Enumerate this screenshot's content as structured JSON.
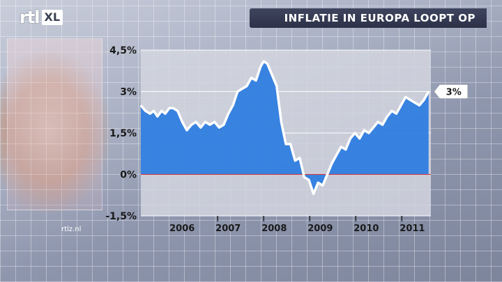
{
  "header": {
    "logo_main": "rtl",
    "logo_badge": "XL",
    "title": "INFLATIE IN EUROPA LOOPT OP"
  },
  "watermark": "rtlz.nl",
  "colors": {
    "area_fill": "#2f7de0",
    "line": "#ffffff",
    "zero_line": "#e03030",
    "plot_bg": "#d4d6df",
    "banner": "#343a52"
  },
  "chart_data": {
    "type": "area",
    "title": "INFLATIE IN EUROPA LOOPT OP",
    "xlabel": "",
    "ylabel": "",
    "ylim": [
      -1.5,
      4.5
    ],
    "xlim": [
      2005.3,
      2011.6
    ],
    "yticks": [
      {
        "value": 4.5,
        "label": "4,5%"
      },
      {
        "value": 3,
        "label": "3%"
      },
      {
        "value": 1.5,
        "label": "1,5%"
      },
      {
        "value": 0,
        "label": "0%"
      },
      {
        "value": -1.5,
        "label": "-1,5%"
      }
    ],
    "xticks": [
      {
        "value": 2006,
        "label": "2006"
      },
      {
        "value": 2007,
        "label": "2007"
      },
      {
        "value": 2008,
        "label": "2008"
      },
      {
        "value": 2009,
        "label": "2009"
      },
      {
        "value": 2010,
        "label": "2010"
      },
      {
        "value": 2011,
        "label": "2011"
      }
    ],
    "grid": "horizontal",
    "last_value_label": "3%",
    "series": [
      {
        "x": [
          2005.3,
          2005.4,
          2005.5,
          2005.58,
          2005.66,
          2005.75,
          2005.83,
          2005.92,
          2006.0,
          2006.1,
          2006.2,
          2006.3,
          2006.4,
          2006.5,
          2006.6,
          2006.7,
          2006.8,
          2006.9,
          2007.0,
          2007.1,
          2007.2,
          2007.3,
          2007.4,
          2007.5,
          2007.6,
          2007.7,
          2007.8,
          2007.9,
          2007.97,
          2008.05,
          2008.15,
          2008.25,
          2008.35,
          2008.45,
          2008.55,
          2008.65,
          2008.75,
          2008.85,
          2008.95,
          2009.05,
          2009.15,
          2009.25,
          2009.35,
          2009.45,
          2009.55,
          2009.65,
          2009.75,
          2009.85,
          2009.95,
          2010.05,
          2010.15,
          2010.25,
          2010.35,
          2010.45,
          2010.55,
          2010.65,
          2010.75,
          2010.85,
          2010.95,
          2011.05,
          2011.15,
          2011.25,
          2011.35,
          2011.45,
          2011.55
        ],
        "y": [
          2.5,
          2.3,
          2.2,
          2.3,
          2.1,
          2.3,
          2.2,
          2.4,
          2.4,
          2.3,
          1.9,
          1.6,
          1.8,
          1.9,
          1.7,
          1.9,
          1.8,
          1.9,
          1.7,
          1.8,
          2.2,
          2.5,
          3.0,
          3.1,
          3.2,
          3.5,
          3.4,
          3.9,
          4.1,
          4.0,
          3.6,
          3.2,
          1.9,
          1.1,
          1.1,
          0.5,
          0.6,
          -0.1,
          -0.2,
          -0.7,
          -0.3,
          -0.4,
          0.0,
          0.4,
          0.7,
          1.0,
          0.9,
          1.3,
          1.5,
          1.3,
          1.6,
          1.5,
          1.7,
          1.9,
          1.8,
          2.1,
          2.3,
          2.2,
          2.5,
          2.8,
          2.7,
          2.6,
          2.5,
          2.7,
          3.0
        ]
      }
    ]
  }
}
